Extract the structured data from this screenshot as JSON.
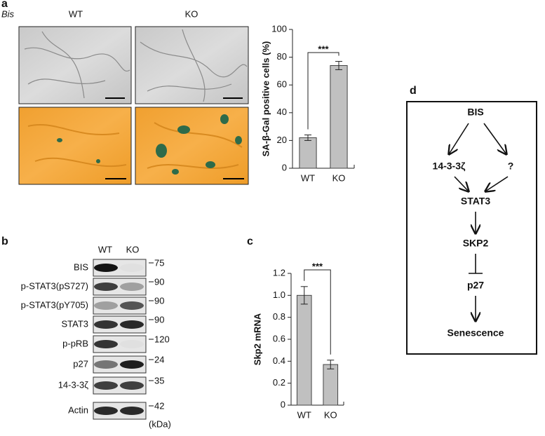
{
  "panel_labels": [
    "a",
    "b",
    "c",
    "d"
  ],
  "micrographs": {
    "genotype_label": "Bis",
    "columns": [
      "WT",
      "KO"
    ]
  },
  "chart_data": [
    {
      "type": "bar",
      "ylabel": "SA-β-Gal positive cells (%)",
      "categories": [
        "WT",
        "KO"
      ],
      "values": [
        22,
        74
      ],
      "errors": [
        2,
        3
      ],
      "color": "#c0c0c0",
      "ylim": [
        0,
        100
      ],
      "yticks": [
        0,
        20,
        40,
        60,
        80,
        100
      ],
      "annotation": "***"
    },
    {
      "type": "bar",
      "ylabel": "Skp2 mRNA",
      "categories": [
        "WT",
        "KO"
      ],
      "values": [
        1.0,
        0.37
      ],
      "errors": [
        0.08,
        0.04
      ],
      "color": "#c0c0c0",
      "ylim": [
        0,
        1.2
      ],
      "yticks": [
        0,
        0.2,
        0.4,
        0.6,
        0.8,
        {
          "value": 1,
          "label": "1.0"
        },
        1.2
      ],
      "annotation": "***"
    }
  ],
  "blot": {
    "columns": [
      "WT",
      "KO"
    ],
    "rows": [
      {
        "label": "BIS",
        "kda": 75
      },
      {
        "label": "p-STAT3(pS727)",
        "kda": 90
      },
      {
        "label": "p-STAT3(pY705)",
        "kda": 90
      },
      {
        "label": "STAT3",
        "kda": 90
      },
      {
        "label": "p-pRB",
        "kda": 120
      },
      {
        "label": "p27",
        "kda": 24
      },
      {
        "label": "14-3-3ζ",
        "kda": 35
      },
      {
        "label": "Actin",
        "kda": 42
      }
    ],
    "unit": "(kDa)"
  },
  "diagram": {
    "nodes": [
      "BIS",
      "14-3-3ζ",
      "?",
      "STAT3",
      "SKP2",
      "p27",
      "Senescence"
    ]
  }
}
